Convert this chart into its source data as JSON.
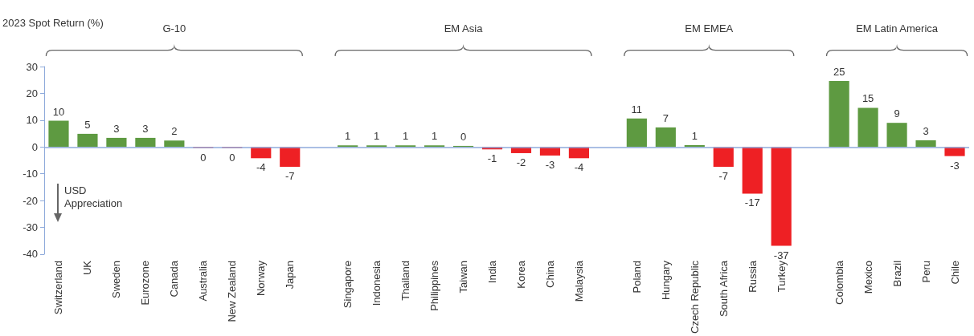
{
  "chart_data": {
    "type": "bar",
    "ylabel": "2023 Spot Return (%)",
    "categories": [
      "Switzerland",
      "UK",
      "Sweden",
      "Eurozone",
      "Canada",
      "Australia",
      "New Zealand",
      "Norway",
      "Japan",
      null,
      "Singapore",
      "Indonesia",
      "Thailand",
      "Philippines",
      "Taiwan",
      "India",
      "Korea",
      "China",
      "Malaysia",
      null,
      "Poland",
      "Hungary",
      "Czech Republic",
      "South Africa",
      "Russia",
      "Turkey",
      null,
      "Colombia",
      "Mexico",
      "Brazil",
      "Peru",
      "Chile"
    ],
    "values": [
      9.8,
      4.9,
      3.4,
      3.4,
      2.4,
      -0.4,
      -0.4,
      -4.2,
      -7.4,
      null,
      0.6,
      0.6,
      0.6,
      0.6,
      0.4,
      -0.9,
      -2.3,
      -3.2,
      -4.2,
      null,
      10.6,
      7.3,
      0.7,
      -7.4,
      -17.4,
      -36.9,
      null,
      24.6,
      14.6,
      9.0,
      2.5,
      -3.4
    ],
    "value_labels": [
      "10",
      "5",
      "3",
      "3",
      "2",
      "0",
      "0",
      "-4",
      "-7",
      null,
      "1",
      "1",
      "1",
      "1",
      "0",
      "-1",
      "-2",
      "-3",
      "-4",
      null,
      "11",
      "7",
      "1",
      "-7",
      "-17",
      "-37",
      null,
      "25",
      "15",
      "9",
      "3",
      "-3"
    ],
    "colors": [
      "#5e9a41",
      "#5e9a41",
      "#5e9a41",
      "#5e9a41",
      "#5e9a41",
      "#ee2024",
      "#ee2024",
      "#ee2024",
      "#ee2024",
      null,
      "#5e9a41",
      "#5e9a41",
      "#5e9a41",
      "#5e9a41",
      "#5e9a41",
      "#ee2024",
      "#ee2024",
      "#ee2024",
      "#ee2024",
      null,
      "#5e9a41",
      "#5e9a41",
      "#5e9a41",
      "#ee2024",
      "#ee2024",
      "#ee2024",
      null,
      "#5e9a41",
      "#5e9a41",
      "#5e9a41",
      "#5e9a41",
      "#ee2024"
    ],
    "ylim": [
      -40,
      30
    ],
    "yticks": [
      -40,
      -30,
      -20,
      -10,
      0,
      10,
      20,
      30
    ],
    "grid": false,
    "ref_lines": [
      {
        "axis": "y",
        "value": 0,
        "color": "#8eaadb"
      }
    ],
    "annotations": [
      "G-10",
      "EM Asia",
      "EM EMEA",
      "EM Latin America",
      "USD Appreciation"
    ]
  }
}
